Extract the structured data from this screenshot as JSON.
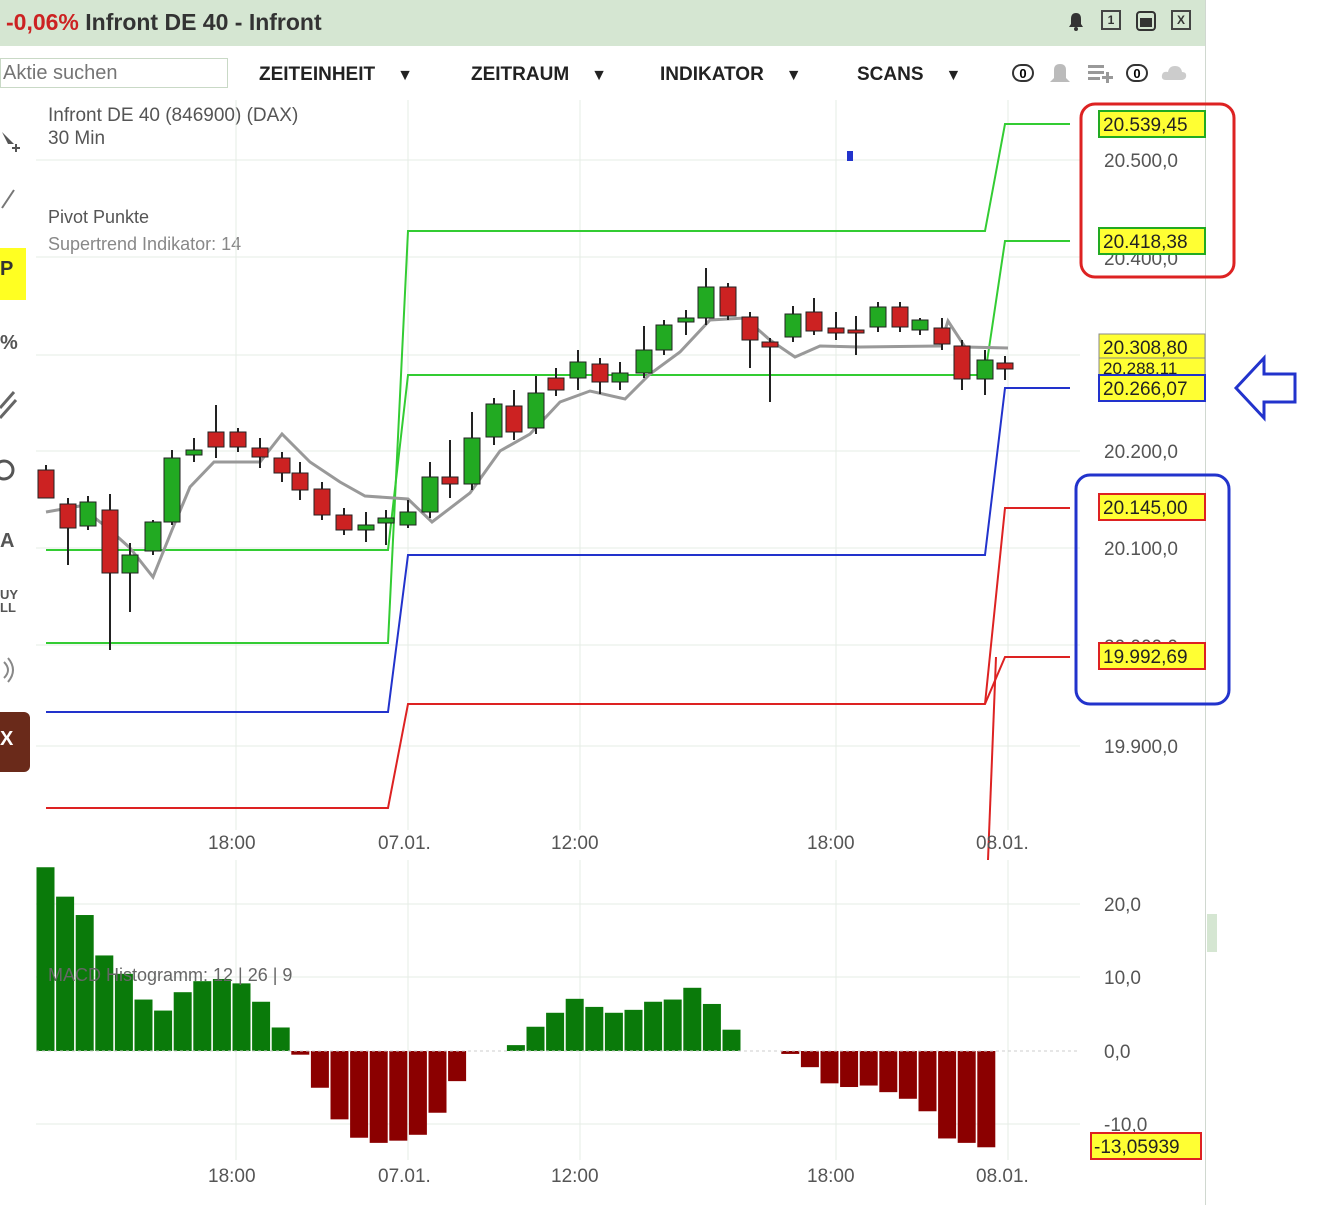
{
  "window": {
    "change": "-0,06%",
    "title": "Infront DE 40 - Infront",
    "buttons": [
      "1",
      "X"
    ]
  },
  "toolbar": {
    "search_placeholder": "Aktie suchen",
    "menus": [
      "ZEITEINHEIT",
      "ZEITRAUM",
      "INDIKATOR",
      "SCANS"
    ],
    "notification_count": "0",
    "watchlist_count": "0"
  },
  "left_tools": [
    "P",
    "%",
    "A",
    "UY",
    "LL",
    "X"
  ],
  "chart": {
    "instrument": "Infront DE 40 (846900) (DAX)",
    "interval": "30 Min",
    "indicator_1": "Pivot Punkte",
    "indicator_2": "Supertrend Indikator: 14",
    "time_labels": [
      "18:00",
      "07.01.",
      "12:00",
      "18:00",
      "08.01."
    ],
    "price_axis": [
      "20.500,0",
      "20.400,0",
      "20.200,0",
      "20.100,0",
      "20.000,0",
      "19.900,0"
    ],
    "price_labels": [
      {
        "text": "20.539,45",
        "bg": "#ffff33",
        "border": "#22aa22"
      },
      {
        "text": "20.418,38",
        "bg": "#ffff33",
        "border": "#22aa22"
      },
      {
        "text": "20.308,80",
        "bg": "#ffff33",
        "border": "#888888"
      },
      {
        "text": "20.288,11",
        "bg": "#ffff33",
        "border": "#888888"
      },
      {
        "text": "20.266,07",
        "bg": "#ffff33",
        "border": "#2233cc"
      },
      {
        "text": "20.145,00",
        "bg": "#ffff33",
        "border": "#dd2222"
      },
      {
        "text": "19.992,69",
        "bg": "#ffff33",
        "border": "#dd2222"
      }
    ],
    "colors": {
      "up": "#22aa22",
      "down": "#cc2222",
      "resistance": "#33cc33",
      "pivot": "#2233cc",
      "support": "#dd2222",
      "supertrend": "#999999"
    }
  },
  "macd": {
    "label": "MACD Histogramm: 12 | 26 | 9",
    "axis": [
      "20,0",
      "10,0",
      "0,0",
      "-10,0"
    ],
    "last_value": "-13,05939",
    "values": [
      25,
      21,
      18.5,
      13,
      10.5,
      7,
      5.5,
      8,
      9.5,
      9.8,
      9.2,
      6.7,
      3.2,
      -0.5,
      -5,
      -9.3,
      -11.8,
      -12.5,
      -12.2,
      -11.4,
      -8.4,
      -4.1,
      0,
      0,
      0.8,
      3.3,
      5.2,
      7.1,
      6,
      5.2,
      5.6,
      6.7,
      7,
      8.6,
      6.4,
      2.9,
      0,
      0,
      -0.4,
      -2.2,
      -4.4,
      -4.9,
      -4.7,
      -5.6,
      -6.5,
      -8.2,
      -11.9,
      -12.5,
      -13.1
    ],
    "colors": {
      "positive": "#0a7a0a",
      "negative": "#8b0000"
    }
  },
  "annotations": [
    {
      "shape": "rect",
      "color": "#dd2222"
    },
    {
      "shape": "rect",
      "color": "#2233cc"
    },
    {
      "shape": "arrow",
      "color": "#2233cc"
    }
  ]
}
